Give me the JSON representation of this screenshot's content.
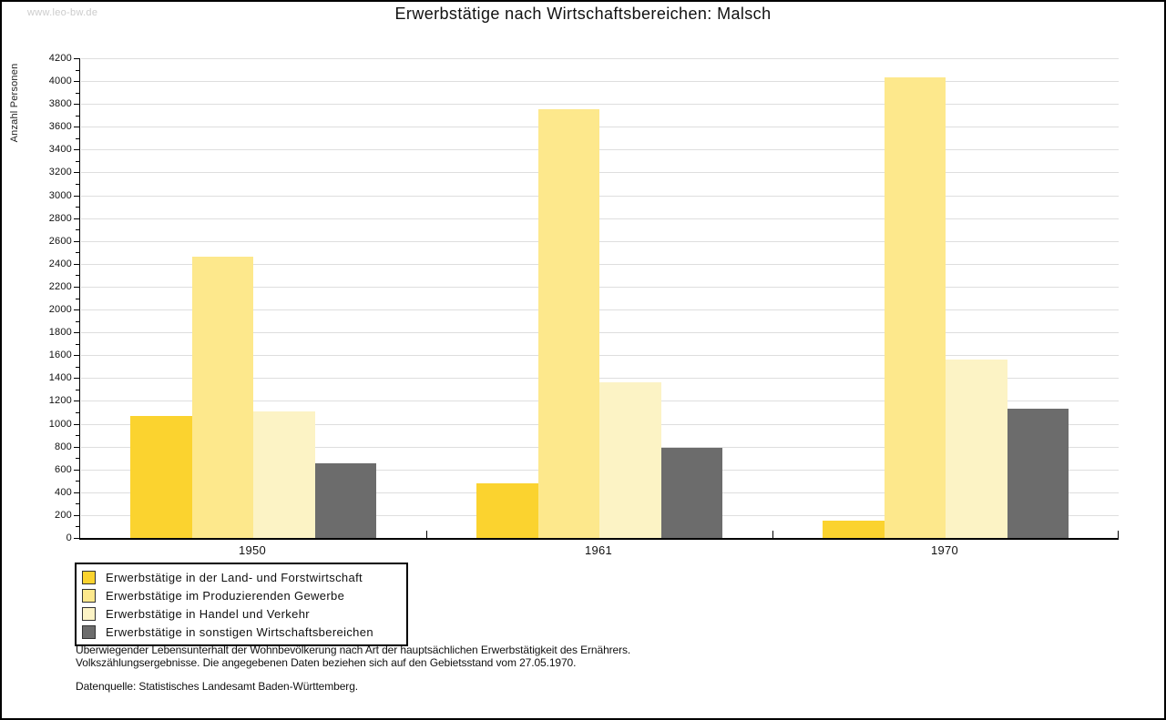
{
  "watermark": "www.leo-bw.de",
  "title": "Erwerbstätige nach Wirtschaftsbereichen: Malsch",
  "y_axis_label": "Anzahl Personen",
  "chart_data": {
    "type": "bar",
    "title": "Erwerbstätige nach Wirtschaftsbereichen: Malsch",
    "categories": [
      "1950",
      "1961",
      "1970"
    ],
    "series": [
      {
        "name": "Erwerbstätige in der Land- und Forstwirtschaft",
        "color": "#fbd32f",
        "values": [
          1070,
          480,
          150
        ]
      },
      {
        "name": "Erwerbstätige im Produzierenden Gewerbe",
        "color": "#fde88c",
        "values": [
          2460,
          3750,
          4030
        ]
      },
      {
        "name": "Erwerbstätige in Handel und Verkehr",
        "color": "#fcf3c5",
        "values": [
          1110,
          1360,
          1560
        ]
      },
      {
        "name": "Erwerbstätige in sonstigen Wirtschaftsbereichen",
        "color": "#6c6c6c",
        "values": [
          650,
          790,
          1130
        ]
      }
    ],
    "xlabel": "",
    "ylabel": "Anzahl Personen",
    "ylim": [
      0,
      4200
    ],
    "ytick_step": 200,
    "y_minor_tick_step": 100,
    "grid": true,
    "gridline_color": "#dedede",
    "legend_position": "bottom-left"
  },
  "footer": {
    "line1": "Überwiegender Lebensunterhalt der Wohnbevölkerung nach Art der hauptsächlichen Erwerbstätigkeit des Ernährers.",
    "line2": "Volkszählungsergebnisse. Die angegebenen Daten beziehen sich auf den Gebietsstand vom 27.05.1970.",
    "source": "Datenquelle: Statistisches Landesamt Baden-Württemberg."
  }
}
